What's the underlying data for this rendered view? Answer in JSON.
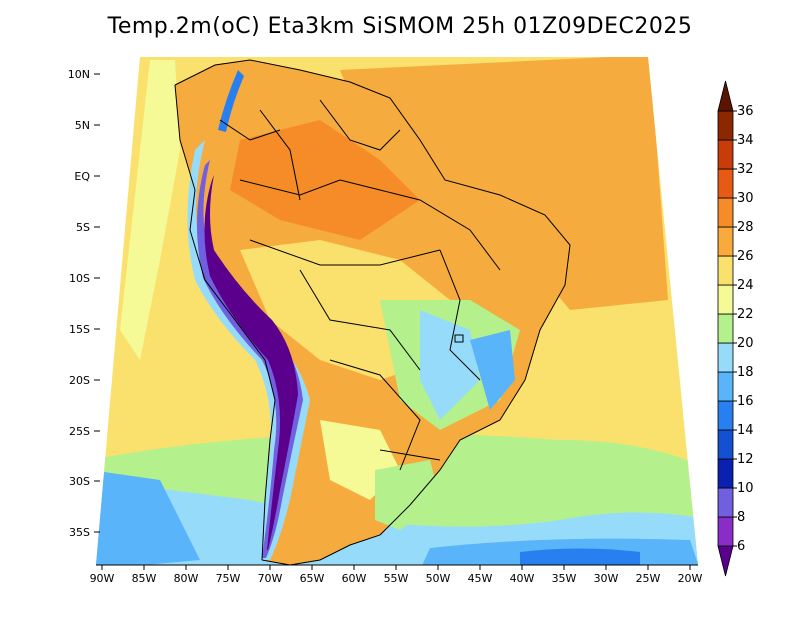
{
  "title": "Temp.2m(oC) Eta3km SiSMOM 25h 01Z09DEC2025",
  "variable": "Temperature at 2 m",
  "units": "oC",
  "model": "Eta3km SiSMOM",
  "forecast": "25h",
  "valid_time": "01Z09DEC2025",
  "lat_labels": [
    "10N",
    "5N",
    "EQ",
    "5S",
    "10S",
    "15S",
    "20S",
    "25S",
    "30S",
    "35S"
  ],
  "lon_labels": [
    "90W",
    "85W",
    "80W",
    "75W",
    "70W",
    "65W",
    "60W",
    "55W",
    "50W",
    "45W",
    "40W",
    "35W",
    "30W",
    "25W",
    "20W"
  ],
  "colorbar": {
    "ticks": [
      "6",
      "8",
      "10",
      "12",
      "14",
      "16",
      "18",
      "20",
      "22",
      "24",
      "26",
      "28",
      "30",
      "32",
      "34",
      "36"
    ],
    "colors": [
      "#5a008c",
      "#8a2cc8",
      "#7060e0",
      "#0a20b0",
      "#1450d2",
      "#2880f0",
      "#5ab4fa",
      "#96dcfa",
      "#b4f08c",
      "#f5fa96",
      "#fae16e",
      "#faaa3c",
      "#f58c28",
      "#e65a14",
      "#c83c0a",
      "#8c2800",
      "#5a1400"
    ]
  },
  "colors": {
    "ocean_warm": "#f5ab3d",
    "ocean_mild": "#fae16e",
    "ocean_cool": "#96dcfa",
    "andes": "#5a008c"
  }
}
